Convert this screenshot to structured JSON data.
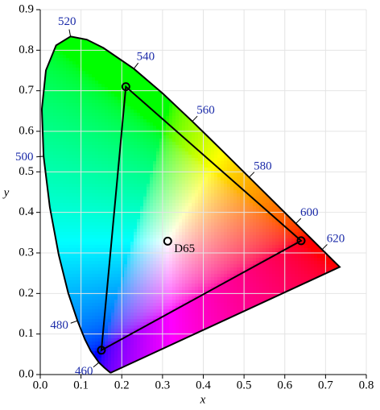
{
  "chart_data": {
    "type": "scatter",
    "xlabel": "x",
    "ylabel": "y",
    "xlim": [
      0,
      0.8
    ],
    "ylim": [
      0,
      0.9
    ],
    "xticks": [
      {
        "value": 0,
        "label": "0.0"
      },
      0.1,
      0.2,
      0.3,
      0.4,
      0.5,
      0.6,
      0.7,
      0.8
    ],
    "yticks": [
      {
        "value": 0,
        "label": "0.0"
      },
      0.1,
      0.2,
      0.3,
      0.4,
      0.5,
      0.6,
      0.7,
      0.8,
      0.9
    ],
    "grid": true,
    "locus": {
      "x": [
        0.1741,
        0.1733,
        0.1714,
        0.1644,
        0.1566,
        0.144,
        0.1241,
        0.1096,
        0.0913,
        0.0687,
        0.0454,
        0.0235,
        0.0082,
        0.0039,
        0.0139,
        0.0389,
        0.0743,
        0.1142,
        0.1547,
        0.2296,
        0.3016,
        0.3731,
        0.4441,
        0.5125,
        0.5752,
        0.627,
        0.6658,
        0.6915,
        0.719,
        0.73,
        0.7347
      ],
      "y": [
        0.005,
        0.0048,
        0.0051,
        0.0109,
        0.0177,
        0.0297,
        0.0578,
        0.0868,
        0.1327,
        0.2007,
        0.295,
        0.4127,
        0.5384,
        0.6548,
        0.7502,
        0.812,
        0.8338,
        0.8262,
        0.8059,
        0.7543,
        0.6923,
        0.6245,
        0.5547,
        0.4866,
        0.4242,
        0.3725,
        0.334,
        0.3083,
        0.2809,
        0.27,
        0.2653
      ],
      "labels": [
        null,
        null,
        null,
        null,
        null,
        460,
        null,
        null,
        480,
        null,
        null,
        null,
        500,
        null,
        null,
        null,
        520,
        null,
        null,
        540,
        null,
        560,
        null,
        580,
        null,
        600,
        null,
        620,
        null,
        null,
        null
      ]
    },
    "gamut": {
      "x": [
        0.64,
        0.21,
        0.15
      ],
      "y": [
        0.33,
        0.71,
        0.06
      ]
    },
    "white_point": {
      "x": 0.3127,
      "y": 0.329,
      "label": "D65"
    }
  }
}
